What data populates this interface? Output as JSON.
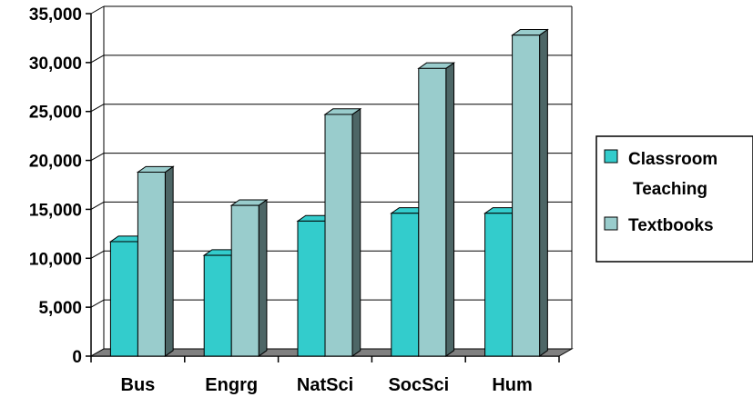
{
  "chart_data": {
    "type": "bar",
    "style": "3d-clustered-column",
    "title": "",
    "xlabel": "",
    "ylabel": "",
    "categories": [
      "Bus",
      "Engrg",
      "NatSci",
      "SocSci",
      "Hum"
    ],
    "series": [
      {
        "name": "Classroom Teaching",
        "name_lines": [
          "Classroom",
          "Teaching"
        ],
        "color": "#33CCCC",
        "values": [
          11700,
          10300,
          13800,
          14600,
          14600
        ]
      },
      {
        "name": "Textbooks",
        "name_lines": [
          "Textbooks"
        ],
        "color": "#99CCCC",
        "values": [
          18800,
          15400,
          24700,
          29400,
          32800
        ]
      }
    ],
    "ylim": [
      0,
      35000
    ],
    "yticks": [
      0,
      5000,
      10000,
      15000,
      20000,
      25000,
      30000,
      35000
    ],
    "ytick_labels": [
      "0",
      "5,000",
      "10,000",
      "15,000",
      "20,000",
      "25,000",
      "30,000",
      "35,000"
    ],
    "grid": true,
    "legend_position": "right",
    "floor_color": "#808080",
    "side_shade_color": "#4D6666"
  }
}
